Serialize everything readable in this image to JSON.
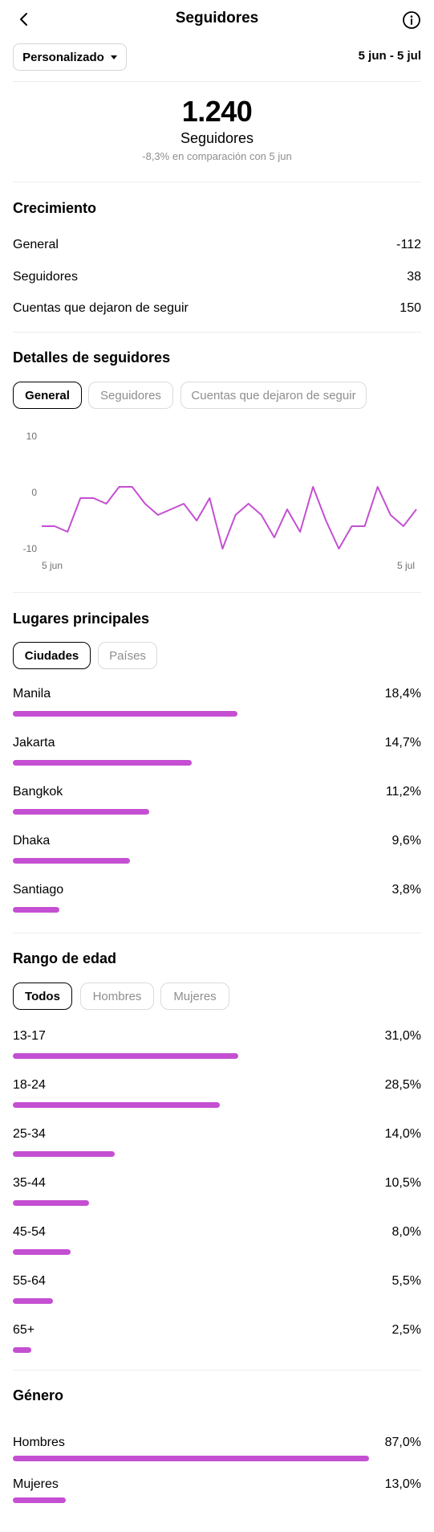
{
  "header": {
    "title": "Seguidores"
  },
  "filter": {
    "label": "Personalizado",
    "date_range": "5 jun - 5 jul"
  },
  "summary": {
    "total": "1.240",
    "label": "Seguidores",
    "comparison": "-8,3% en comparación con 5 jun"
  },
  "growth": {
    "title": "Crecimiento",
    "rows": [
      {
        "label": "General",
        "value": "-112"
      },
      {
        "label": "Seguidores",
        "value": "38"
      },
      {
        "label": "Cuentas que dejaron de seguir",
        "value": "150"
      }
    ]
  },
  "details": {
    "title": "Detalles de seguidores",
    "tabs": [
      "General",
      "Seguidores",
      "Cuentas que dejaron de seguir"
    ]
  },
  "chart_data": {
    "type": "line",
    "title": "",
    "xlabel": "",
    "ylabel": "",
    "x_tick_labels": [
      "5 jun",
      "5 jul"
    ],
    "y_tick_labels": [
      "10",
      "0",
      "-10"
    ],
    "ylim": [
      -10,
      10
    ],
    "grid": false,
    "line_color": "#c44fd2",
    "series": [
      {
        "values": [
          -6,
          -6,
          -7,
          -1,
          -1,
          -2,
          1,
          1,
          -2,
          -4,
          -3,
          -2,
          -5,
          -1,
          -10,
          -4,
          -2,
          -4,
          -8,
          -3,
          -7,
          1,
          -5,
          -10,
          -6,
          -6,
          1,
          -4,
          -6,
          -3
        ]
      }
    ]
  },
  "locations": {
    "title": "Lugares principales",
    "tabs": [
      "Ciudades",
      "Países"
    ],
    "items": [
      {
        "label": "Manila",
        "value": "18,4%",
        "fraction": 0.184
      },
      {
        "label": "Jakarta",
        "value": "14,7%",
        "fraction": 0.147
      },
      {
        "label": "Bangkok",
        "value": "11,2%",
        "fraction": 0.112
      },
      {
        "label": "Dhaka",
        "value": "9,6%",
        "fraction": 0.096
      },
      {
        "label": "Santiago",
        "value": "3,8%",
        "fraction": 0.038
      }
    ]
  },
  "age": {
    "title": "Rango de edad",
    "tabs": [
      "Todos",
      "Hombres",
      "Mujeres"
    ],
    "items": [
      {
        "label": "13-17",
        "value": "31,0%",
        "fraction": 0.31
      },
      {
        "label": "18-24",
        "value": "28,5%",
        "fraction": 0.285
      },
      {
        "label": "25-34",
        "value": "14,0%",
        "fraction": 0.14
      },
      {
        "label": "35-44",
        "value": "10,5%",
        "fraction": 0.105
      },
      {
        "label": "45-54",
        "value": "8,0%",
        "fraction": 0.08
      },
      {
        "label": "55-64",
        "value": "5,5%",
        "fraction": 0.055
      },
      {
        "label": "65+",
        "value": "2,5%",
        "fraction": 0.025
      }
    ]
  },
  "gender": {
    "title": "Género",
    "items": [
      {
        "label": "Hombres",
        "value": "87,0%",
        "fraction": 0.87
      },
      {
        "label": "Mujeres",
        "value": "13,0%",
        "fraction": 0.13
      }
    ]
  },
  "colors": {
    "accent": "#c44fd2",
    "muted_text": "#8e8e8e",
    "divider": "#ececec"
  },
  "icons": {
    "back": "chevron-left-icon",
    "info": "info-circle-icon",
    "dropdown": "caret-down-icon"
  }
}
